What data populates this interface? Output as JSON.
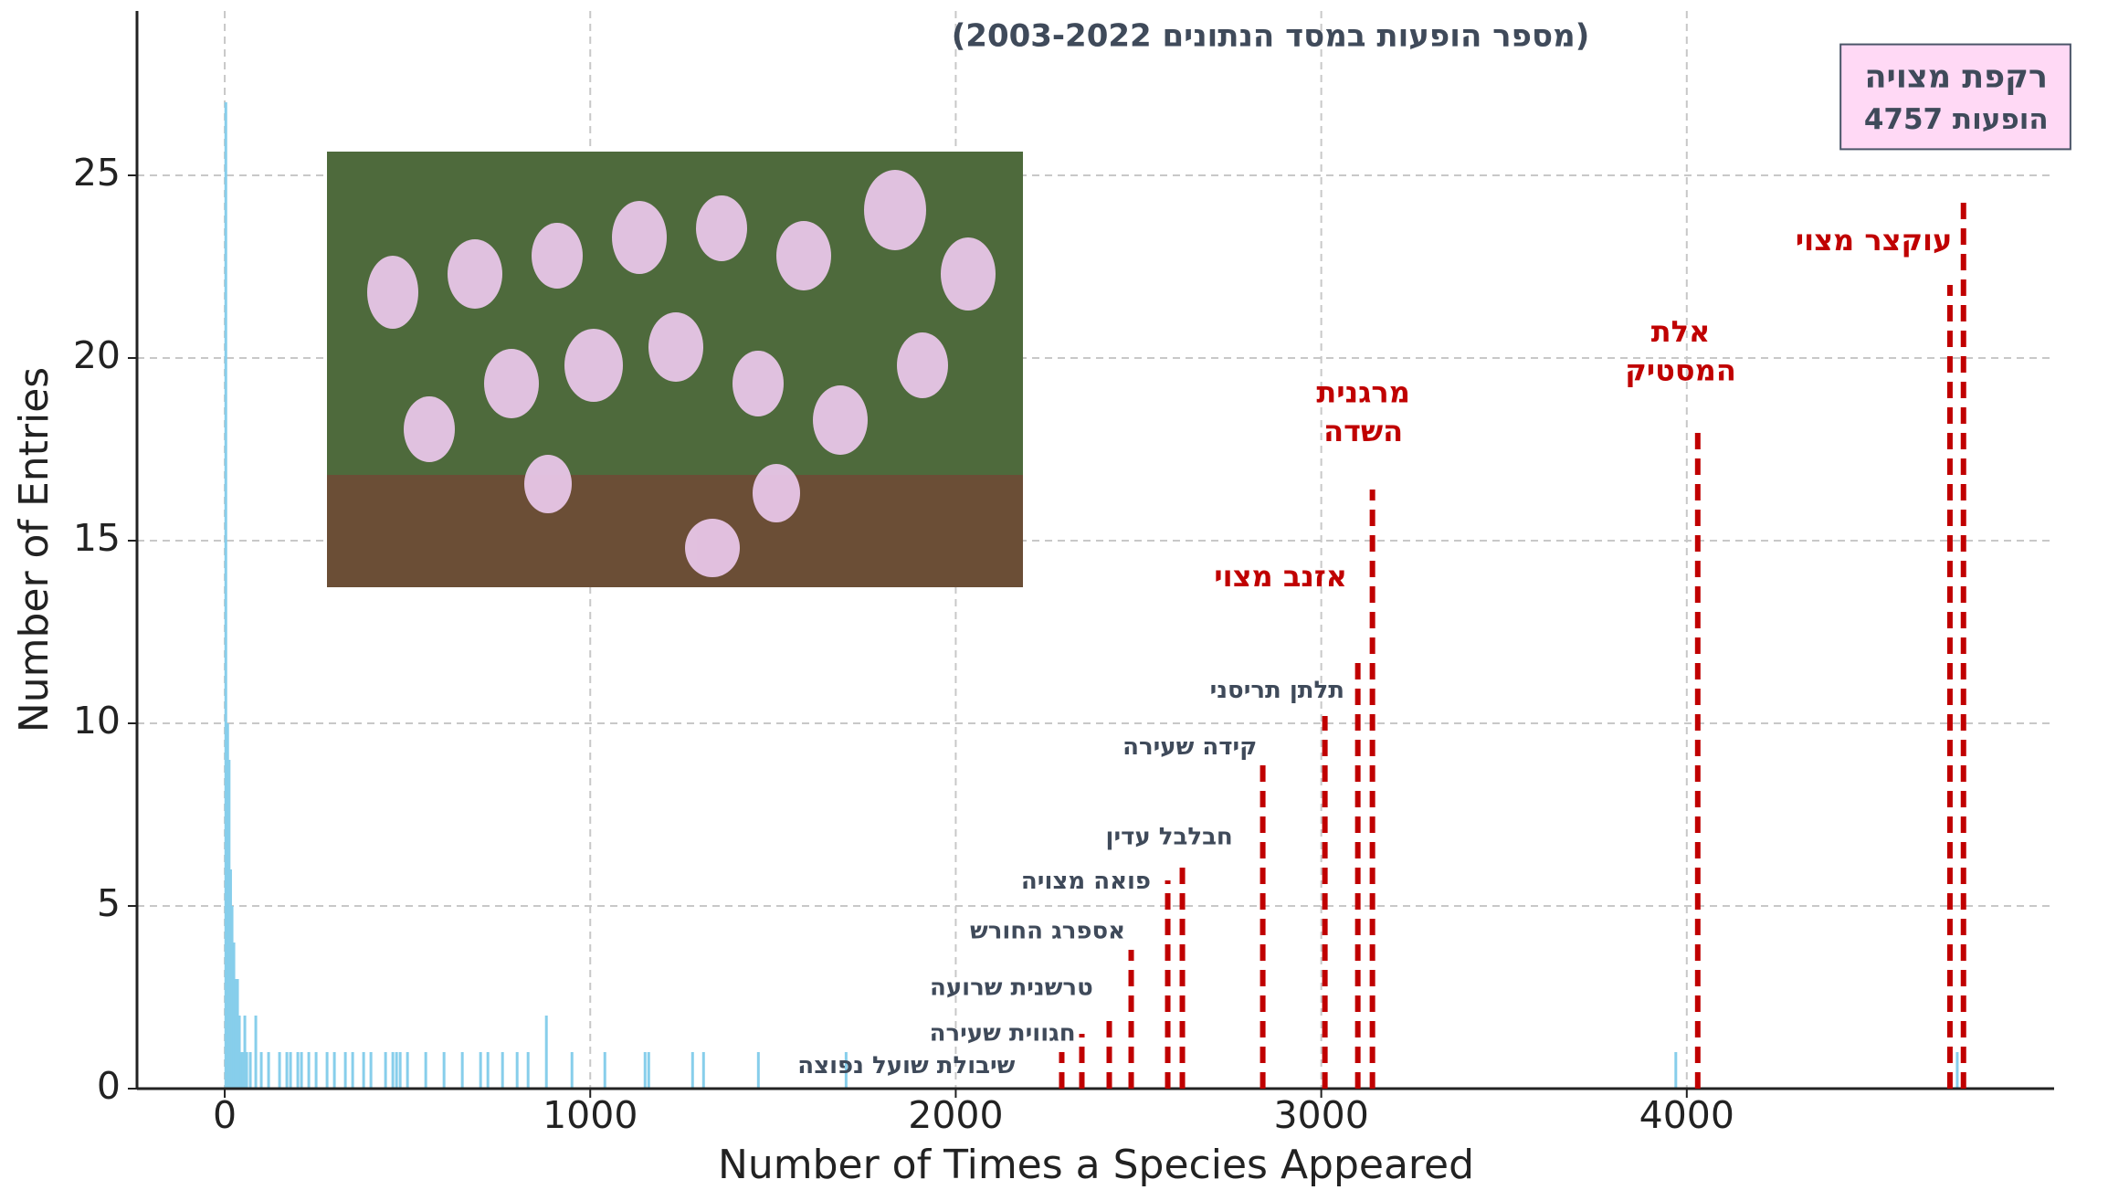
{
  "chart_data": {
    "type": "bar",
    "title": "(מספר הופעות במסד הנתונים 2003-2022)",
    "x_label": "Number of Times a Species Appeared",
    "y_label": "Number of Entries",
    "color": "#87ceeb",
    "x": [
      3,
      8,
      12,
      16,
      20,
      25,
      30,
      35,
      40,
      45,
      50,
      55,
      60,
      70,
      85,
      100,
      120,
      150,
      170,
      180,
      200,
      210,
      230,
      250,
      280,
      300,
      330,
      350,
      380,
      400,
      440,
      460,
      470,
      480,
      500,
      550,
      600,
      650,
      700,
      720,
      760,
      800,
      830,
      880,
      950,
      1040,
      1150,
      1160,
      1280,
      1310,
      1460,
      1700,
      3970,
      4740
    ],
    "values": [
      27,
      10,
      9,
      6,
      5,
      4,
      3,
      3,
      2,
      1,
      1,
      2,
      1,
      1,
      2,
      1,
      1,
      1,
      1,
      1,
      1,
      1,
      1,
      1,
      1,
      1,
      1,
      1,
      1,
      1,
      1,
      1,
      1,
      1,
      1,
      1,
      1,
      1,
      1,
      1,
      1,
      1,
      1,
      2,
      1,
      1,
      1,
      1,
      1,
      1,
      1,
      1,
      1,
      1
    ],
    "xlim": [
      -240,
      5005
    ],
    "ylim": [
      0,
      29.5
    ],
    "xticks": [
      0,
      1000,
      2000,
      3000,
      4000
    ],
    "yticks": [
      0,
      5,
      10,
      15,
      20,
      25
    ],
    "grid": true,
    "annotations": [
      {
        "label": [
          "שיבולת שועל נפוצה"
        ],
        "x": 2290,
        "y": 1,
        "color": "#3f4a5a"
      },
      {
        "label": [
          "חגווית שעירה"
        ],
        "x": 2345,
        "y": 1.5,
        "color": "#3f4a5a"
      },
      {
        "label": [
          "טרשנית שרועה"
        ],
        "x": 2420,
        "y": 2,
        "color": "#3f4a5a"
      },
      {
        "label": [
          "אספרג החורש"
        ],
        "x": 2480,
        "y": 3.8,
        "color": "#3f4a5a"
      },
      {
        "label": [
          "פואה מצויה"
        ],
        "x": 2580,
        "y": 5.7,
        "color": "#3f4a5a"
      },
      {
        "label": [
          "חבלבל עדין"
        ],
        "x": 2620,
        "y": 6.2,
        "color": "#3f4a5a"
      },
      {
        "label": [
          "קידה שעירה"
        ],
        "x": 2840,
        "y": 9,
        "color": "#3f4a5a"
      },
      {
        "label": [
          "תלתן תריסני"
        ],
        "x": 3010,
        "y": 10.2,
        "color": "#3f4a5a"
      },
      {
        "label": [
          "אזנב מצוי"
        ],
        "x": 3100,
        "y": 11.8,
        "color": "#c00000"
      },
      {
        "label": [
          "מרגנית",
          "השדה"
        ],
        "x": 3140,
        "y": 16.4,
        "color": "#c00000"
      },
      {
        "label": [
          "אלת",
          "המסטיק"
        ],
        "x": 4030,
        "y": 18,
        "color": "#c00000"
      },
      {
        "label": [
          "עוקצר מצוי"
        ],
        "x": 4720,
        "y": 22,
        "color": "#c00000"
      },
      {
        "label": [
          "רקפת מצויה",
          "4757 הופעות"
        ],
        "x": 4757,
        "y": 24.5,
        "color": "#3f4a5a"
      }
    ]
  }
}
